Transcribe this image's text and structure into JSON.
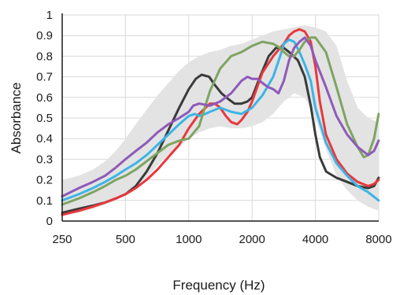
{
  "chart_data": {
    "type": "line",
    "title": "",
    "xlabel": "Frequency (Hz)",
    "ylabel": "Absorbance",
    "x_scale": "log2",
    "xlim": [
      250,
      8000
    ],
    "ylim": [
      0,
      1
    ],
    "x_ticks": [
      250,
      500,
      1000,
      2000,
      4000,
      8000
    ],
    "x_tick_labels": [
      "250",
      "500",
      "1000",
      "2000",
      "4000",
      "8000"
    ],
    "y_ticks": [
      0,
      0.1,
      0.2,
      0.3,
      0.4,
      0.5,
      0.6,
      0.7,
      0.8,
      0.9,
      1
    ],
    "y_tick_labels": [
      "0",
      "0.1",
      "0.2",
      "0.3",
      "0.4",
      "0.5",
      "0.6",
      "0.7",
      "0.8",
      "0.9",
      "1"
    ],
    "grid": true,
    "legend": "none",
    "band": {
      "color": "#e3e3e3",
      "x": [
        250,
        300,
        350,
        400,
        450,
        500,
        560,
        630,
        710,
        800,
        900,
        1000,
        1120,
        1260,
        1410,
        1590,
        1780,
        2000,
        2240,
        2520,
        2830,
        3170,
        3560,
        4000,
        4490,
        5040,
        5660,
        6350,
        7130,
        8000
      ],
      "upper": [
        0.2,
        0.22,
        0.25,
        0.29,
        0.34,
        0.4,
        0.47,
        0.54,
        0.61,
        0.67,
        0.73,
        0.77,
        0.8,
        0.82,
        0.83,
        0.85,
        0.86,
        0.88,
        0.9,
        0.92,
        0.93,
        0.94,
        0.95,
        0.94,
        0.92,
        0.85,
        0.68,
        0.55,
        0.5,
        0.48
      ],
      "lower": [
        0.03,
        0.04,
        0.06,
        0.08,
        0.1,
        0.13,
        0.17,
        0.21,
        0.27,
        0.32,
        0.36,
        0.4,
        0.43,
        0.45,
        0.46,
        0.45,
        0.45,
        0.46,
        0.48,
        0.52,
        0.58,
        0.62,
        0.6,
        0.5,
        0.35,
        0.22,
        0.15,
        0.1,
        0.07,
        0.05
      ]
    },
    "series": [
      {
        "color": "#3a3a3a",
        "x": [
          250,
          300,
          350,
          400,
          450,
          500,
          560,
          630,
          710,
          800,
          900,
          1000,
          1080,
          1150,
          1250,
          1330,
          1430,
          1550,
          1650,
          1780,
          1900,
          2000,
          2200,
          2400,
          2600,
          2830,
          3000,
          3300,
          3560,
          3800,
          4000,
          4200,
          4500,
          5040,
          5660,
          6350,
          7130,
          7600,
          8000
        ],
        "y": [
          0.04,
          0.06,
          0.075,
          0.09,
          0.11,
          0.13,
          0.17,
          0.24,
          0.33,
          0.44,
          0.55,
          0.64,
          0.69,
          0.71,
          0.7,
          0.66,
          0.62,
          0.59,
          0.57,
          0.57,
          0.58,
          0.6,
          0.71,
          0.8,
          0.84,
          0.84,
          0.82,
          0.78,
          0.7,
          0.56,
          0.42,
          0.31,
          0.24,
          0.21,
          0.19,
          0.17,
          0.16,
          0.17,
          0.21
        ]
      },
      {
        "color": "#e8383d",
        "x": [
          250,
          300,
          350,
          400,
          450,
          500,
          560,
          630,
          710,
          800,
          900,
          1000,
          1120,
          1260,
          1330,
          1410,
          1500,
          1590,
          1700,
          1780,
          1900,
          2000,
          2240,
          2520,
          2830,
          3000,
          3170,
          3360,
          3560,
          3800,
          4000,
          4200,
          4490,
          5040,
          5660,
          6350,
          7130,
          7600,
          8000
        ],
        "y": [
          0.03,
          0.05,
          0.07,
          0.09,
          0.11,
          0.13,
          0.16,
          0.2,
          0.25,
          0.31,
          0.37,
          0.45,
          0.52,
          0.57,
          0.57,
          0.55,
          0.51,
          0.48,
          0.47,
          0.49,
          0.53,
          0.58,
          0.72,
          0.8,
          0.86,
          0.9,
          0.92,
          0.93,
          0.92,
          0.87,
          0.75,
          0.58,
          0.42,
          0.3,
          0.23,
          0.19,
          0.17,
          0.18,
          0.2
        ]
      },
      {
        "color": "#3cb4e6",
        "x": [
          250,
          300,
          350,
          400,
          450,
          500,
          560,
          630,
          710,
          800,
          900,
          1000,
          1070,
          1120,
          1200,
          1260,
          1410,
          1590,
          1780,
          2000,
          2240,
          2520,
          2720,
          2830,
          3000,
          3170,
          3360,
          3560,
          3800,
          4000,
          4490,
          5040,
          5660,
          6350,
          7130,
          8000
        ],
        "y": [
          0.1,
          0.13,
          0.16,
          0.19,
          0.22,
          0.25,
          0.28,
          0.32,
          0.37,
          0.42,
          0.47,
          0.51,
          0.52,
          0.51,
          0.52,
          0.53,
          0.55,
          0.53,
          0.52,
          0.55,
          0.61,
          0.7,
          0.8,
          0.86,
          0.88,
          0.87,
          0.82,
          0.76,
          0.68,
          0.55,
          0.38,
          0.28,
          0.22,
          0.17,
          0.14,
          0.1
        ]
      },
      {
        "color": "#7ea462",
        "x": [
          250,
          300,
          350,
          400,
          450,
          500,
          560,
          630,
          710,
          800,
          900,
          1000,
          1120,
          1260,
          1410,
          1590,
          1780,
          2000,
          2240,
          2520,
          2720,
          2830,
          3000,
          3170,
          3360,
          3560,
          3800,
          4000,
          4490,
          5040,
          5660,
          6350,
          6800,
          7130,
          7600,
          8000
        ],
        "y": [
          0.08,
          0.11,
          0.14,
          0.17,
          0.2,
          0.22,
          0.25,
          0.29,
          0.33,
          0.37,
          0.39,
          0.4,
          0.46,
          0.63,
          0.74,
          0.8,
          0.82,
          0.85,
          0.87,
          0.86,
          0.84,
          0.82,
          0.8,
          0.8,
          0.83,
          0.87,
          0.89,
          0.89,
          0.82,
          0.65,
          0.47,
          0.36,
          0.31,
          0.32,
          0.4,
          0.52
        ]
      },
      {
        "color": "#8e5ab8",
        "x": [
          250,
          300,
          350,
          400,
          450,
          500,
          560,
          630,
          710,
          800,
          900,
          1000,
          1050,
          1120,
          1260,
          1410,
          1590,
          1780,
          1900,
          2000,
          2120,
          2240,
          2380,
          2520,
          2670,
          2830,
          3000,
          3170,
          3360,
          3560,
          3800,
          4000,
          4490,
          5040,
          5660,
          6350,
          7130,
          7600,
          8000
        ],
        "y": [
          0.12,
          0.16,
          0.19,
          0.22,
          0.26,
          0.3,
          0.34,
          0.38,
          0.43,
          0.47,
          0.5,
          0.53,
          0.56,
          0.57,
          0.56,
          0.58,
          0.62,
          0.68,
          0.7,
          0.69,
          0.69,
          0.67,
          0.65,
          0.64,
          0.62,
          0.68,
          0.78,
          0.84,
          0.87,
          0.89,
          0.85,
          0.78,
          0.65,
          0.51,
          0.42,
          0.36,
          0.32,
          0.34,
          0.39
        ]
      }
    ]
  }
}
